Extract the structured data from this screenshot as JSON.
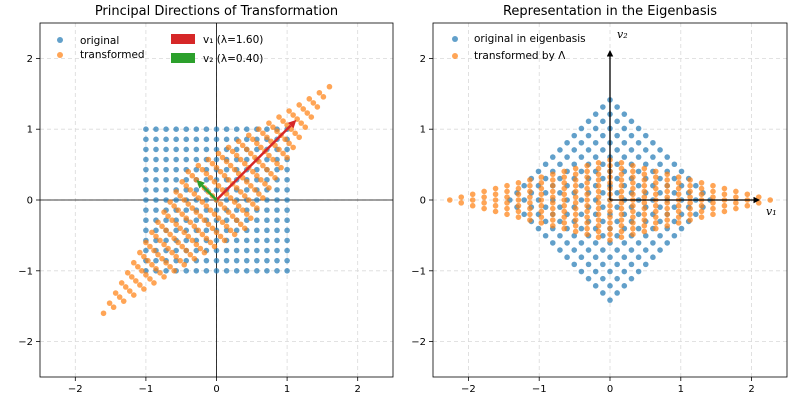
{
  "chart_data": [
    {
      "type": "scatter",
      "title": "Principal Directions of Transformation",
      "xlim": [
        -2.5,
        2.5
      ],
      "ylim": [
        -2.5,
        2.5
      ],
      "xticks": [
        -2,
        -1,
        0,
        1,
        2
      ],
      "yticks": [
        -2,
        -1,
        0,
        1,
        2
      ],
      "tick_labels": [
        "−2",
        "−1",
        "0",
        "1",
        "2"
      ],
      "grid": true,
      "legend_position": "top-left",
      "transform": [
        [
          1.0,
          0.6
        ],
        [
          0.6,
          1.0
        ]
      ],
      "grid_range": [
        -1,
        1
      ],
      "grid_n": 15,
      "series": [
        {
          "name": "original",
          "color": "#1f77b4",
          "rule": "15x15 grid of points over [-1,1] x [-1,1]"
        },
        {
          "name": "transformed",
          "color": "#ff7f0e",
          "rule": "original points multiplied by matrix [[1.0,0.6],[0.6,1.0]]"
        }
      ],
      "vectors": [
        {
          "name": "v1",
          "label": "v₁ (λ=1.60)",
          "lambda": 1.6,
          "x": 1.131,
          "y": 1.131,
          "color": "#d62728"
        },
        {
          "name": "v2",
          "label": "v₂ (λ=0.40)",
          "lambda": 0.4,
          "x": -0.283,
          "y": 0.283,
          "color": "#2ca02c"
        }
      ]
    },
    {
      "type": "scatter",
      "title": "Representation in the Eigenbasis",
      "xlim": [
        -2.5,
        2.5
      ],
      "ylim": [
        -2.5,
        2.5
      ],
      "xticks": [
        -2,
        -1,
        0,
        1,
        2
      ],
      "yticks": [
        -2,
        -1,
        0,
        1,
        2
      ],
      "tick_labels": [
        "−2",
        "−1",
        "0",
        "1",
        "2"
      ],
      "grid": true,
      "legend_position": "top-left",
      "eigenvalues": [
        1.6,
        0.4
      ],
      "series": [
        {
          "name": "original in eigenbasis",
          "color": "#1f77b4",
          "rule": "grid points rotated by -45 degrees (diamond)"
        },
        {
          "name": "transformed by Λ",
          "color": "#ff7f0e",
          "rule": "eigenbasis points scaled by diag(1.6, 0.4)"
        }
      ],
      "axis_arrows": [
        {
          "label": "v₁",
          "x": 2.1,
          "y": 0
        },
        {
          "label": "v₂",
          "x": 0,
          "y": 2.1
        }
      ]
    }
  ]
}
